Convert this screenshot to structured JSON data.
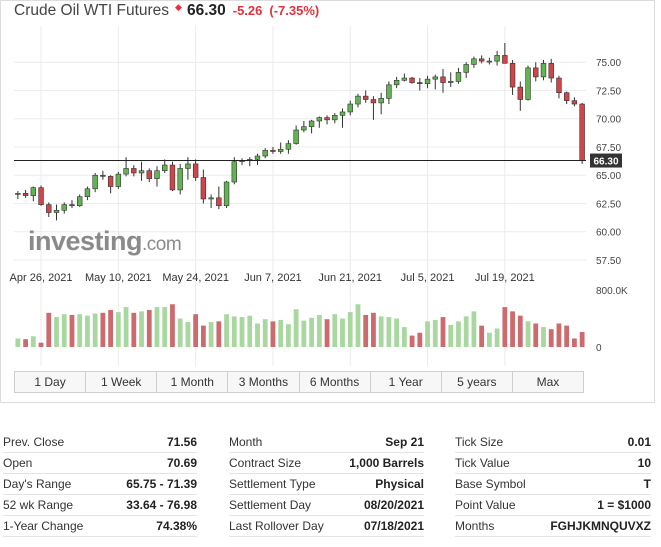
{
  "header": {
    "title": "Crude Oil WTI Futures",
    "price": "66.30",
    "change": "-5.26",
    "change_pct": "(-7.35%)"
  },
  "watermark": {
    "logo_text": "investing",
    "logo_suffix": ".com"
  },
  "colors": {
    "up": "#62b352",
    "down": "#d0454a",
    "up_volume": "#a8d8a0",
    "down_volume": "#cd6a6e",
    "price_label_bg": "#333333"
  },
  "chart_data": {
    "type": "candlestick",
    "instrument": "Crude Oil WTI Futures",
    "last_price_label": "66.30",
    "last_price": 66.3,
    "y_ticks": [
      "75.00",
      "72.50",
      "70.00",
      "67.50",
      "65.00",
      "62.50",
      "60.00",
      "57.50"
    ],
    "ylim": [
      57.5,
      76.7
    ],
    "x_ticks": [
      {
        "label": "Apr 26, 2021",
        "index": 3
      },
      {
        "label": "May 10, 2021",
        "index": 13
      },
      {
        "label": "May 24, 2021",
        "index": 23
      },
      {
        "label": "Jun 7, 2021",
        "index": 33
      },
      {
        "label": "Jun 21, 2021",
        "index": 43
      },
      {
        "label": "Jul 5, 2021",
        "index": 53
      },
      {
        "label": "Jul 19, 2021",
        "index": 63
      }
    ],
    "volume_ticks": [
      "800.0K",
      "0"
    ],
    "volume_max": 800000,
    "candles": [
      {
        "o": 63.3,
        "h": 63.6,
        "l": 62.9,
        "c": 63.4,
        "v": 120000
      },
      {
        "o": 63.4,
        "h": 63.7,
        "l": 63.0,
        "c": 63.2,
        "v": 110000
      },
      {
        "o": 63.2,
        "h": 64.0,
        "l": 62.7,
        "c": 63.9,
        "v": 150000
      },
      {
        "o": 63.9,
        "h": 64.1,
        "l": 62.3,
        "c": 62.4,
        "v": 60000
      },
      {
        "o": 62.4,
        "h": 62.6,
        "l": 61.3,
        "c": 61.7,
        "v": 480000
      },
      {
        "o": 61.7,
        "h": 62.4,
        "l": 61.0,
        "c": 61.9,
        "v": 420000
      },
      {
        "o": 61.9,
        "h": 62.6,
        "l": 61.6,
        "c": 62.4,
        "v": 460000
      },
      {
        "o": 62.4,
        "h": 62.8,
        "l": 62.1,
        "c": 62.3,
        "v": 450000
      },
      {
        "o": 62.3,
        "h": 63.3,
        "l": 62.2,
        "c": 63.1,
        "v": 460000
      },
      {
        "o": 63.1,
        "h": 64.0,
        "l": 62.8,
        "c": 63.8,
        "v": 440000
      },
      {
        "o": 63.8,
        "h": 65.2,
        "l": 63.5,
        "c": 65.0,
        "v": 470000
      },
      {
        "o": 65.0,
        "h": 65.4,
        "l": 64.6,
        "c": 64.9,
        "v": 480000
      },
      {
        "o": 64.9,
        "h": 65.0,
        "l": 63.4,
        "c": 64.0,
        "v": 520000
      },
      {
        "o": 64.0,
        "h": 65.3,
        "l": 63.8,
        "c": 65.1,
        "v": 490000
      },
      {
        "o": 65.1,
        "h": 66.6,
        "l": 64.9,
        "c": 65.6,
        "v": 560000
      },
      {
        "o": 65.6,
        "h": 65.9,
        "l": 64.9,
        "c": 65.2,
        "v": 480000
      },
      {
        "o": 65.2,
        "h": 66.2,
        "l": 64.5,
        "c": 65.4,
        "v": 500000
      },
      {
        "o": 65.4,
        "h": 65.6,
        "l": 64.4,
        "c": 64.7,
        "v": 520000
      },
      {
        "o": 64.7,
        "h": 65.8,
        "l": 64.0,
        "c": 65.4,
        "v": 560000
      },
      {
        "o": 65.4,
        "h": 66.4,
        "l": 65.2,
        "c": 65.9,
        "v": 560000
      },
      {
        "o": 65.9,
        "h": 66.2,
        "l": 63.6,
        "c": 63.7,
        "v": 600000
      },
      {
        "o": 63.7,
        "h": 66.0,
        "l": 63.3,
        "c": 65.6,
        "v": 400000
      },
      {
        "o": 65.6,
        "h": 66.6,
        "l": 64.6,
        "c": 66.0,
        "v": 350000
      },
      {
        "o": 66.0,
        "h": 66.4,
        "l": 64.5,
        "c": 64.8,
        "v": 460000
      },
      {
        "o": 64.8,
        "h": 65.5,
        "l": 62.5,
        "c": 62.9,
        "v": 300000
      },
      {
        "o": 62.9,
        "h": 63.3,
        "l": 62.1,
        "c": 63.0,
        "v": 350000
      },
      {
        "o": 63.0,
        "h": 64.0,
        "l": 62.0,
        "c": 62.3,
        "v": 360000
      },
      {
        "o": 62.3,
        "h": 64.5,
        "l": 62.1,
        "c": 64.4,
        "v": 460000
      },
      {
        "o": 64.4,
        "h": 66.6,
        "l": 64.2,
        "c": 66.2,
        "v": 430000
      },
      {
        "o": 66.2,
        "h": 66.5,
        "l": 65.9,
        "c": 66.3,
        "v": 420000
      },
      {
        "o": 66.3,
        "h": 66.6,
        "l": 65.8,
        "c": 66.4,
        "v": 440000
      },
      {
        "o": 66.4,
        "h": 66.9,
        "l": 65.9,
        "c": 66.7,
        "v": 330000
      },
      {
        "o": 66.7,
        "h": 67.4,
        "l": 66.5,
        "c": 67.2,
        "v": 390000
      },
      {
        "o": 67.2,
        "h": 67.5,
        "l": 66.9,
        "c": 67.1,
        "v": 360000
      },
      {
        "o": 67.1,
        "h": 67.9,
        "l": 66.9,
        "c": 67.3,
        "v": 380000
      },
      {
        "o": 67.3,
        "h": 68.1,
        "l": 66.9,
        "c": 67.8,
        "v": 320000
      },
      {
        "o": 67.8,
        "h": 69.4,
        "l": 67.7,
        "c": 69.0,
        "v": 530000
      },
      {
        "o": 69.0,
        "h": 69.8,
        "l": 68.8,
        "c": 69.3,
        "v": 370000
      },
      {
        "o": 69.3,
        "h": 69.9,
        "l": 68.7,
        "c": 69.8,
        "v": 410000
      },
      {
        "o": 69.8,
        "h": 70.2,
        "l": 69.2,
        "c": 70.1,
        "v": 450000
      },
      {
        "o": 70.1,
        "h": 70.3,
        "l": 69.5,
        "c": 69.9,
        "v": 390000
      },
      {
        "o": 69.9,
        "h": 70.5,
        "l": 69.6,
        "c": 70.3,
        "v": 460000
      },
      {
        "o": 70.3,
        "h": 70.9,
        "l": 69.2,
        "c": 70.6,
        "v": 400000
      },
      {
        "o": 70.6,
        "h": 71.6,
        "l": 70.3,
        "c": 71.3,
        "v": 490000
      },
      {
        "o": 71.3,
        "h": 72.2,
        "l": 71.0,
        "c": 72.0,
        "v": 600000
      },
      {
        "o": 72.0,
        "h": 72.5,
        "l": 71.4,
        "c": 71.7,
        "v": 450000
      },
      {
        "o": 71.7,
        "h": 72.0,
        "l": 69.9,
        "c": 71.4,
        "v": 480000
      },
      {
        "o": 71.4,
        "h": 72.3,
        "l": 70.4,
        "c": 71.8,
        "v": 430000
      },
      {
        "o": 71.8,
        "h": 73.3,
        "l": 71.3,
        "c": 73.0,
        "v": 420000
      },
      {
        "o": 73.0,
        "h": 73.7,
        "l": 72.7,
        "c": 73.4,
        "v": 400000
      },
      {
        "o": 73.4,
        "h": 74.0,
        "l": 73.3,
        "c": 73.6,
        "v": 280000
      },
      {
        "o": 73.6,
        "h": 73.7,
        "l": 73.1,
        "c": 73.2,
        "v": 160000
      },
      {
        "o": 73.2,
        "h": 73.6,
        "l": 72.5,
        "c": 73.1,
        "v": 200000
      },
      {
        "o": 73.1,
        "h": 73.8,
        "l": 72.7,
        "c": 73.5,
        "v": 360000
      },
      {
        "o": 73.5,
        "h": 73.9,
        "l": 72.6,
        "c": 73.7,
        "v": 380000
      },
      {
        "o": 73.7,
        "h": 74.4,
        "l": 72.3,
        "c": 73.2,
        "v": 420000
      },
      {
        "o": 73.2,
        "h": 74.1,
        "l": 72.8,
        "c": 73.3,
        "v": 310000
      },
      {
        "o": 73.3,
        "h": 74.5,
        "l": 73.1,
        "c": 74.1,
        "v": 360000
      },
      {
        "o": 74.1,
        "h": 75.0,
        "l": 73.6,
        "c": 74.8,
        "v": 430000
      },
      {
        "o": 74.8,
        "h": 75.5,
        "l": 74.5,
        "c": 75.3,
        "v": 500000
      },
      {
        "o": 75.3,
        "h": 75.6,
        "l": 74.9,
        "c": 75.1,
        "v": 300000
      },
      {
        "o": 75.1,
        "h": 75.4,
        "l": 74.8,
        "c": 75.1,
        "v": 200000
      },
      {
        "o": 75.1,
        "h": 76.0,
        "l": 74.7,
        "c": 75.6,
        "v": 260000
      },
      {
        "o": 75.6,
        "h": 76.7,
        "l": 74.9,
        "c": 74.9,
        "v": 560000
      },
      {
        "o": 74.9,
        "h": 75.2,
        "l": 72.1,
        "c": 72.8,
        "v": 500000
      },
      {
        "o": 72.8,
        "h": 73.3,
        "l": 70.7,
        "c": 71.7,
        "v": 440000
      },
      {
        "o": 71.7,
        "h": 74.7,
        "l": 71.6,
        "c": 74.5,
        "v": 360000
      },
      {
        "o": 74.5,
        "h": 75.0,
        "l": 73.3,
        "c": 73.7,
        "v": 330000
      },
      {
        "o": 73.7,
        "h": 75.2,
        "l": 73.4,
        "c": 74.9,
        "v": 280000
      },
      {
        "o": 74.9,
        "h": 75.3,
        "l": 73.2,
        "c": 73.6,
        "v": 250000
      },
      {
        "o": 73.6,
        "h": 73.8,
        "l": 71.8,
        "c": 72.3,
        "v": 330000
      },
      {
        "o": 72.3,
        "h": 72.4,
        "l": 71.3,
        "c": 71.6,
        "v": 300000
      },
      {
        "o": 71.6,
        "h": 71.9,
        "l": 71.1,
        "c": 71.3,
        "v": 120000
      },
      {
        "o": 71.3,
        "h": 71.4,
        "l": 66.0,
        "c": 66.3,
        "v": 210000
      }
    ]
  },
  "ranges": [
    {
      "label": "1 Day"
    },
    {
      "label": "1 Week"
    },
    {
      "label": "1 Month"
    },
    {
      "label": "3 Months"
    },
    {
      "label": "6 Months"
    },
    {
      "label": "1 Year"
    },
    {
      "label": "5 years"
    },
    {
      "label": "Max"
    }
  ],
  "stats": {
    "col1": [
      {
        "label": "Prev. Close",
        "value": "71.56"
      },
      {
        "label": "Open",
        "value": "70.69"
      },
      {
        "label": "Day's Range",
        "value": "65.75 - 71.39"
      },
      {
        "label": "52 wk Range",
        "value": "33.64 - 76.98"
      },
      {
        "label": "1-Year Change",
        "value": "74.38%"
      }
    ],
    "col2": [
      {
        "label": "Month",
        "value": "Sep 21"
      },
      {
        "label": "Contract Size",
        "value": "1,000 Barrels"
      },
      {
        "label": "Settlement Type",
        "value": "Physical"
      },
      {
        "label": "Settlement Day",
        "value": "08/20/2021"
      },
      {
        "label": "Last Rollover Day",
        "value": "07/18/2021"
      }
    ],
    "col3": [
      {
        "label": "Tick Size",
        "value": "0.01"
      },
      {
        "label": "Tick Value",
        "value": "10"
      },
      {
        "label": "Base Symbol",
        "value": "T"
      },
      {
        "label": "Point Value",
        "value": "1 = $1000"
      },
      {
        "label": "Months",
        "value": "FGHJKMNQUVXZ"
      }
    ]
  }
}
